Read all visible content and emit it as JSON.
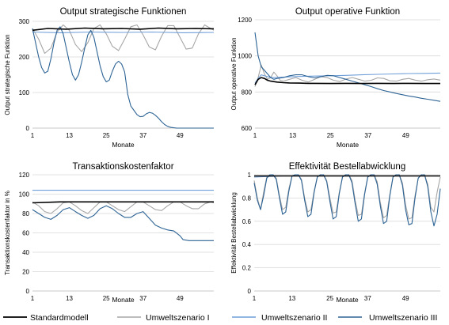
{
  "legend": {
    "placement": "bottom",
    "items": [
      {
        "label": "Standardmodell",
        "color": "#000000"
      },
      {
        "label": "Umweltszenario I",
        "color": "#A6A6A6"
      },
      {
        "label": "Umweltszenario II",
        "color": "#6F9FD8"
      },
      {
        "label": "Umweltszenario III",
        "color": "#2E6496"
      }
    ]
  },
  "chart_data": [
    {
      "type": "line",
      "title": "Output strategische Funktionen",
      "xlabel": "Monate",
      "ylabel": "Output strategische Funktion",
      "xticks": [
        1,
        13,
        25,
        37,
        49
      ],
      "xlim": [
        1,
        60
      ],
      "yticks": [
        0,
        100,
        200,
        300
      ],
      "ylim": [
        0,
        300
      ],
      "grid": "horizontal",
      "series": [
        {
          "name": "Standardmodell",
          "color": "#000000",
          "x": [
            1,
            6,
            12,
            18,
            24,
            30,
            36,
            42,
            48,
            54,
            60
          ],
          "values": [
            275,
            280,
            278,
            281,
            279,
            280,
            278,
            281,
            279,
            280,
            279
          ]
        },
        {
          "name": "Umweltszenario I",
          "color": "#A6A6A6",
          "x": [
            1,
            3,
            5,
            7,
            9,
            11,
            13,
            15,
            17,
            19,
            21,
            23,
            25,
            27,
            29,
            31,
            33,
            35,
            37,
            39,
            41,
            43,
            45,
            47,
            49,
            51,
            53,
            55,
            57,
            59,
            60
          ],
          "values": [
            280,
            250,
            210,
            225,
            270,
            290,
            275,
            235,
            215,
            240,
            280,
            290,
            265,
            230,
            218,
            250,
            285,
            290,
            262,
            228,
            220,
            258,
            288,
            288,
            255,
            222,
            225,
            265,
            290,
            280,
            275
          ]
        },
        {
          "name": "Umweltszenario II",
          "color": "#6F9FD8",
          "x": [
            1,
            10,
            20,
            30,
            40,
            50,
            60
          ],
          "values": [
            270,
            268,
            270,
            269,
            270,
            268,
            269
          ]
        },
        {
          "name": "Umweltszenario III",
          "color": "#2E6496",
          "x": [
            1,
            2,
            3,
            4,
            5,
            6,
            7,
            8,
            9,
            10,
            11,
            12,
            13,
            14,
            15,
            16,
            17,
            18,
            19,
            20,
            21,
            22,
            23,
            24,
            25,
            26,
            27,
            28,
            29,
            30,
            31,
            32,
            33,
            34,
            35,
            36,
            37,
            38,
            39,
            40,
            41,
            42,
            43,
            44,
            45,
            46,
            47,
            48,
            49,
            50,
            51,
            52,
            55,
            60
          ],
          "values": [
            280,
            240,
            200,
            170,
            155,
            160,
            195,
            240,
            275,
            285,
            265,
            225,
            185,
            150,
            135,
            150,
            185,
            225,
            262,
            275,
            255,
            215,
            175,
            145,
            130,
            135,
            160,
            180,
            188,
            180,
            158,
            95,
            62,
            50,
            38,
            32,
            33,
            40,
            44,
            42,
            36,
            28,
            18,
            10,
            5,
            2,
            1,
            0,
            0,
            0,
            0,
            0,
            0,
            0
          ]
        }
      ]
    },
    {
      "type": "line",
      "title": "Output operative Funktion",
      "xlabel": "Monate",
      "ylabel": "Output operative Funktion",
      "xticks": [
        1,
        13,
        25,
        37,
        49
      ],
      "xlim": [
        1,
        60
      ],
      "yticks": [
        600,
        800,
        1000,
        1200
      ],
      "ylim": [
        600,
        1200
      ],
      "grid": "horizontal",
      "series": [
        {
          "name": "Standardmodell",
          "color": "#000000",
          "x": [
            1,
            2,
            3,
            4,
            5,
            6,
            8,
            10,
            12,
            15,
            18,
            20,
            25,
            30,
            35,
            40,
            45,
            50,
            55,
            60
          ],
          "values": [
            840,
            870,
            880,
            875,
            865,
            860,
            855,
            852,
            850,
            849,
            848,
            848,
            847,
            848,
            847,
            848,
            847,
            848,
            847,
            847
          ]
        },
        {
          "name": "Umweltszenario I",
          "color": "#A6A6A6",
          "x": [
            1,
            2,
            3,
            4,
            5,
            6,
            7,
            8,
            9,
            10,
            12,
            14,
            16,
            18,
            20,
            22,
            24,
            26,
            28,
            30,
            32,
            34,
            36,
            38,
            40,
            42,
            44,
            46,
            48,
            50,
            52,
            54,
            56,
            58,
            60
          ],
          "values": [
            830,
            880,
            950,
            900,
            870,
            880,
            910,
            890,
            865,
            860,
            870,
            880,
            865,
            855,
            870,
            885,
            880,
            865,
            858,
            872,
            880,
            870,
            860,
            865,
            878,
            875,
            862,
            860,
            870,
            875,
            866,
            860,
            868,
            872,
            866
          ]
        },
        {
          "name": "Umweltszenario II",
          "color": "#6F9FD8",
          "x": [
            1,
            2,
            3,
            4,
            5,
            6,
            8,
            10,
            12,
            15,
            20,
            25,
            30,
            35,
            40,
            45,
            50,
            55,
            60
          ],
          "values": [
            850,
            875,
            895,
            890,
            885,
            880,
            880,
            882,
            884,
            886,
            888,
            890,
            892,
            895,
            898,
            900,
            902,
            903,
            905
          ]
        },
        {
          "name": "Umweltszenario III",
          "color": "#2E6496",
          "x": [
            1,
            2,
            3,
            4,
            5,
            6,
            7,
            8,
            10,
            12,
            14,
            16,
            18,
            20,
            22,
            24,
            26,
            28,
            30,
            32,
            34,
            36,
            38,
            40,
            42,
            44,
            46,
            48,
            50,
            52,
            54,
            56,
            58,
            60
          ],
          "values": [
            1130,
            1000,
            940,
            920,
            900,
            880,
            870,
            875,
            880,
            890,
            895,
            895,
            885,
            878,
            885,
            892,
            890,
            880,
            870,
            860,
            850,
            840,
            830,
            818,
            808,
            800,
            792,
            785,
            778,
            772,
            765,
            760,
            754,
            748
          ]
        }
      ]
    },
    {
      "type": "line",
      "title": "Transaktionskostenfaktor",
      "xlabel": "Monate",
      "ylabel": "Transaktionskostenfaktor in %",
      "xticks": [
        1,
        13,
        25,
        37,
        49
      ],
      "xlim": [
        1,
        60
      ],
      "yticks": [
        0,
        20,
        40,
        60,
        80,
        100,
        120
      ],
      "ylim": [
        0,
        120
      ],
      "grid": "horizontal",
      "series": [
        {
          "name": "Standardmodell",
          "color": "#000000",
          "x": [
            1,
            10,
            20,
            30,
            40,
            50,
            60
          ],
          "values": [
            91,
            92,
            92,
            92,
            92,
            92,
            92
          ]
        },
        {
          "name": "Umweltszenario I",
          "color": "#A6A6A6",
          "x": [
            1,
            3,
            5,
            7,
            9,
            11,
            13,
            15,
            17,
            19,
            21,
            23,
            25,
            27,
            29,
            31,
            33,
            35,
            37,
            39,
            41,
            43,
            45,
            47,
            49,
            51,
            53,
            55,
            57,
            59,
            60
          ],
          "values": [
            92,
            88,
            82,
            80,
            85,
            91,
            92,
            88,
            83,
            80,
            86,
            92,
            92,
            88,
            84,
            82,
            87,
            92,
            92,
            88,
            84,
            83,
            88,
            92,
            92,
            88,
            85,
            85,
            90,
            92,
            91
          ]
        },
        {
          "name": "Umweltszenario II",
          "color": "#6F9FD8",
          "x": [
            1,
            10,
            20,
            30,
            40,
            50,
            60
          ],
          "values": [
            104,
            104,
            104,
            104,
            104,
            104,
            104
          ]
        },
        {
          "name": "Umweltszenario III",
          "color": "#2E6496",
          "x": [
            1,
            3,
            5,
            7,
            9,
            11,
            13,
            15,
            17,
            19,
            21,
            23,
            25,
            27,
            29,
            31,
            33,
            35,
            37,
            39,
            41,
            43,
            45,
            47,
            49,
            50,
            52,
            55,
            58,
            60
          ],
          "values": [
            84,
            80,
            76,
            74,
            78,
            84,
            86,
            82,
            78,
            75,
            78,
            85,
            88,
            85,
            80,
            76,
            76,
            80,
            82,
            75,
            68,
            65,
            63,
            62,
            57,
            53,
            52,
            52,
            52,
            52
          ]
        }
      ]
    },
    {
      "type": "line",
      "title": "Effektivität Bestellabwicklung",
      "xlabel": "Monate",
      "ylabel": "Effektivität Bestellabwicklung",
      "xticks": [
        1,
        13,
        25,
        37,
        49
      ],
      "xlim": [
        1,
        60
      ],
      "yticks": [
        0,
        0.2,
        0.4,
        0.6,
        0.8,
        1
      ],
      "ylim": [
        0,
        1
      ],
      "grid": "horizontal",
      "series": [
        {
          "name": "Standardmodell",
          "color": "#000000",
          "x": [
            1,
            10,
            20,
            30,
            40,
            50,
            60
          ],
          "values": [
            0.99,
            0.99,
            0.99,
            0.99,
            0.99,
            0.99,
            0.99
          ]
        },
        {
          "name": "Umweltszenario I",
          "color": "#A6A6A6",
          "x": [
            1,
            2,
            3,
            4,
            5,
            6,
            7,
            8,
            9,
            10,
            11,
            12,
            13,
            14,
            15,
            16,
            17,
            18,
            19,
            20,
            21,
            22,
            23,
            24,
            25,
            26,
            27,
            28,
            29,
            30,
            31,
            32,
            33,
            34,
            35,
            36,
            37,
            38,
            39,
            40,
            41,
            42,
            43,
            44,
            45,
            46,
            47,
            48,
            49,
            50,
            51,
            52,
            53,
            54,
            55,
            56,
            57,
            58,
            59,
            60
          ],
          "values": [
            0.95,
            0.8,
            0.7,
            0.85,
            0.98,
            1,
            1,
            0.97,
            0.82,
            0.7,
            0.72,
            0.88,
            0.99,
            1,
            1,
            0.96,
            0.8,
            0.68,
            0.7,
            0.86,
            0.98,
            1,
            1,
            0.95,
            0.8,
            0.67,
            0.68,
            0.85,
            0.98,
            1,
            1,
            0.95,
            0.78,
            0.65,
            0.66,
            0.84,
            0.98,
            1,
            1,
            0.94,
            0.76,
            0.63,
            0.65,
            0.83,
            0.98,
            1,
            1,
            0.93,
            0.74,
            0.62,
            0.63,
            0.82,
            0.97,
            1,
            1,
            0.92,
            0.72,
            0.68,
            0.85,
            0.98
          ]
        },
        {
          "name": "Umweltszenario II",
          "color": "#6F9FD8",
          "x": [
            1,
            10,
            20,
            30,
            40,
            50,
            60
          ],
          "values": [
            0.98,
            0.99,
            0.99,
            0.99,
            0.99,
            0.99,
            0.99
          ]
        },
        {
          "name": "Umweltszenario III",
          "color": "#2E6496",
          "x": [
            1,
            2,
            3,
            4,
            5,
            6,
            7,
            8,
            9,
            10,
            11,
            12,
            13,
            14,
            15,
            16,
            17,
            18,
            19,
            20,
            21,
            22,
            23,
            24,
            25,
            26,
            27,
            28,
            29,
            30,
            31,
            32,
            33,
            34,
            35,
            36,
            37,
            38,
            39,
            40,
            41,
            42,
            43,
            44,
            45,
            46,
            47,
            48,
            49,
            50,
            51,
            52,
            53,
            54,
            55,
            56,
            57,
            58,
            59,
            60
          ],
          "values": [
            0.93,
            0.78,
            0.7,
            0.82,
            0.97,
            1,
            1,
            0.96,
            0.8,
            0.66,
            0.68,
            0.86,
            0.99,
            1,
            1,
            0.95,
            0.78,
            0.64,
            0.66,
            0.85,
            0.98,
            1,
            1,
            0.94,
            0.77,
            0.62,
            0.64,
            0.84,
            0.98,
            1,
            1,
            0.93,
            0.75,
            0.6,
            0.62,
            0.83,
            0.98,
            1,
            1,
            0.92,
            0.73,
            0.58,
            0.6,
            0.82,
            0.98,
            1,
            1,
            0.91,
            0.7,
            0.57,
            0.58,
            0.8,
            0.97,
            1,
            1,
            0.9,
            0.68,
            0.56,
            0.66,
            0.88
          ]
        }
      ]
    }
  ]
}
